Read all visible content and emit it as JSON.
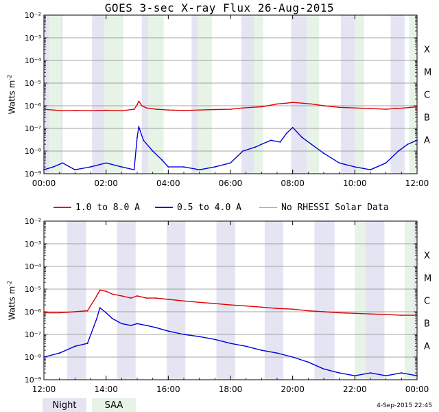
{
  "title": "GOES 3-sec X-ray Flux   26-Aug-2015",
  "ylabel": "Watts m",
  "ylabel_sup": "-2",
  "legend": [
    {
      "label": "1.0 to 8.0 A",
      "color": "#dd0000"
    },
    {
      "label": "0.5 to 4.0 A",
      "color": "#0000dd"
    },
    {
      "label": "No RHESSI Solar Data",
      "color": "#999999"
    }
  ],
  "bottom_keys": [
    {
      "label": "Night",
      "color": "#e4e4f2"
    },
    {
      "label": "SAA",
      "color": "#e6f3e6"
    }
  ],
  "timestamp": "4-Sep-2015 22:45",
  "colors": {
    "night": "#e4e4f2",
    "saa": "#e6f3e6",
    "long": "#dd0000",
    "short": "#0000dd",
    "gray": "#999999"
  },
  "chart_data": [
    {
      "type": "line",
      "scale_y": "log",
      "ylim": [
        1e-09,
        0.01
      ],
      "y_tick_labels": [
        "10⁻⁹",
        "10⁻⁸",
        "10⁻⁷",
        "10⁻⁶",
        "10⁻⁵",
        "10⁻⁴",
        "10⁻³",
        "10⁻²"
      ],
      "class_labels": [
        {
          "label": "A",
          "y": 1e-08
        },
        {
          "label": "B",
          "y": 1e-07
        },
        {
          "label": "C",
          "y": 1e-06
        },
        {
          "label": "M",
          "y": 1e-05
        },
        {
          "label": "X",
          "y": 0.0001
        }
      ],
      "xlim_hours": [
        0,
        12
      ],
      "x_tick_labels": [
        "00:00",
        "02:00",
        "04:00",
        "06:00",
        "08:00",
        "10:00",
        "12:00"
      ],
      "night": [
        [
          0.0,
          0.6
        ],
        [
          1.55,
          1.95
        ],
        [
          3.15,
          3.35
        ],
        [
          4.75,
          4.95
        ],
        [
          6.35,
          6.75
        ],
        [
          7.95,
          8.45
        ],
        [
          9.55,
          10.0
        ],
        [
          11.15,
          11.6
        ]
      ],
      "saa": [
        [
          0.15,
          0.55
        ],
        [
          1.95,
          2.55
        ],
        [
          3.35,
          3.85
        ],
        [
          4.95,
          5.4
        ],
        [
          6.75,
          7.05
        ],
        [
          8.45,
          8.85
        ],
        [
          10.0,
          10.3
        ],
        [
          11.75,
          12.0
        ]
      ],
      "series": [
        {
          "name": "1.0 to 8.0 A",
          "x": [
            0,
            0.3,
            0.6,
            1.0,
            1.5,
            2.0,
            2.5,
            2.9,
            3.0,
            3.05,
            3.15,
            3.3,
            3.6,
            4.0,
            4.5,
            5.0,
            5.5,
            6.0,
            6.4,
            6.7,
            7.0,
            7.2,
            7.5,
            7.8,
            8.0,
            8.3,
            8.6,
            9.0,
            9.5,
            10.0,
            10.5,
            11.0,
            11.3,
            11.6,
            12.0
          ],
          "y": [
            7e-07,
            6.5e-07,
            6e-07,
            6.2e-07,
            6e-07,
            6.3e-07,
            6e-07,
            7e-07,
            1.1e-06,
            1.6e-06,
            1e-06,
            8e-07,
            7e-07,
            6.5e-07,
            6.2e-07,
            6.5e-07,
            6.8e-07,
            7e-07,
            8e-07,
            8.5e-07,
            9e-07,
            1e-06,
            1.2e-06,
            1.3e-06,
            1.4e-06,
            1.3e-06,
            1.2e-06,
            1e-06,
            8.5e-07,
            8e-07,
            7.5e-07,
            7e-07,
            7.5e-07,
            8e-07,
            9e-07
          ]
        },
        {
          "name": "0.5 to 4.0 A",
          "x": [
            0,
            0.3,
            0.6,
            1.0,
            1.5,
            2.0,
            2.5,
            2.9,
            3.0,
            3.05,
            3.2,
            3.5,
            3.8,
            4.0,
            4.5,
            5.0,
            5.5,
            6.0,
            6.4,
            6.8,
            7.0,
            7.3,
            7.6,
            7.8,
            8.0,
            8.3,
            8.6,
            9.0,
            9.5,
            10.0,
            10.5,
            11.0,
            11.4,
            11.7,
            12.0
          ],
          "y": [
            1.5e-09,
            2e-09,
            3e-09,
            1.5e-09,
            2e-09,
            3e-09,
            2e-09,
            1.5e-09,
            4e-08,
            1.2e-07,
            3e-08,
            1e-08,
            4e-09,
            2e-09,
            2e-09,
            1.5e-09,
            2e-09,
            3e-09,
            1e-08,
            1.5e-08,
            2e-08,
            3e-08,
            2.5e-08,
            6e-08,
            1.1e-07,
            4e-08,
            2e-08,
            8e-09,
            3e-09,
            2e-09,
            1.5e-09,
            3e-09,
            1e-08,
            2e-08,
            3e-08
          ]
        }
      ]
    },
    {
      "type": "line",
      "scale_y": "log",
      "ylim": [
        1e-09,
        0.01
      ],
      "y_tick_labels": [
        "10⁻⁹",
        "10⁻⁸",
        "10⁻⁷",
        "10⁻⁶",
        "10⁻⁵",
        "10⁻⁴",
        "10⁻³",
        "10⁻²"
      ],
      "class_labels": [
        {
          "label": "A",
          "y": 1e-08
        },
        {
          "label": "B",
          "y": 1e-07
        },
        {
          "label": "C",
          "y": 1e-06
        },
        {
          "label": "M",
          "y": 1e-05
        },
        {
          "label": "X",
          "y": 0.0001
        }
      ],
      "xlim_hours": [
        12,
        24
      ],
      "x_tick_labels": [
        "12:00",
        "14:00",
        "16:00",
        "18:00",
        "20:00",
        "22:00",
        "00:00"
      ],
      "night": [
        [
          12.75,
          13.35
        ],
        [
          14.35,
          14.95
        ],
        [
          15.95,
          16.55
        ],
        [
          17.55,
          18.15
        ],
        [
          19.1,
          19.7
        ],
        [
          20.7,
          21.35
        ],
        [
          22.3,
          22.95
        ],
        [
          23.9,
          24.0
        ]
      ],
      "saa": [
        [
          22.0,
          22.35
        ],
        [
          23.6,
          23.9
        ]
      ],
      "series": [
        {
          "name": "1.0 to 8.0 A",
          "x": [
            12,
            12.5,
            13.0,
            13.4,
            13.7,
            13.8,
            14.0,
            14.2,
            14.5,
            14.8,
            15.0,
            15.3,
            15.6,
            16.0,
            16.5,
            17.0,
            17.5,
            18.0,
            18.5,
            19.0,
            19.5,
            20.0,
            20.5,
            21.0,
            21.5,
            22.0,
            22.5,
            23.0,
            23.5,
            24.0
          ],
          "y": [
            9e-07,
            9e-07,
            1e-06,
            1.1e-06,
            5e-06,
            9e-06,
            8e-06,
            6e-06,
            5e-06,
            4e-06,
            5e-06,
            4e-06,
            4e-06,
            3.5e-06,
            3e-06,
            2.6e-06,
            2.3e-06,
            2e-06,
            1.8e-06,
            1.6e-06,
            1.4e-06,
            1.3e-06,
            1.1e-06,
            1e-06,
            9e-07,
            8.5e-07,
            8e-07,
            7.5e-07,
            7e-07,
            7e-07
          ]
        },
        {
          "name": "0.5 to 4.0 A",
          "x": [
            12,
            12.5,
            13.0,
            13.4,
            13.7,
            13.8,
            14.0,
            14.2,
            14.5,
            14.8,
            15.0,
            15.3,
            15.6,
            16.0,
            16.5,
            17.0,
            17.5,
            18.0,
            18.5,
            19.0,
            19.5,
            20.0,
            20.5,
            21.0,
            21.5,
            22.0,
            22.5,
            23.0,
            23.5,
            24.0
          ],
          "y": [
            1e-08,
            1.5e-08,
            3e-08,
            4e-08,
            5e-07,
            1.5e-06,
            9e-07,
            5e-07,
            3e-07,
            2.5e-07,
            3e-07,
            2.5e-07,
            2e-07,
            1.4e-07,
            1e-07,
            8e-08,
            6e-08,
            4e-08,
            3e-08,
            2e-08,
            1.5e-08,
            1e-08,
            6e-09,
            3e-09,
            2e-09,
            1.5e-09,
            2e-09,
            1.5e-09,
            2e-09,
            1.5e-09
          ]
        }
      ]
    }
  ]
}
